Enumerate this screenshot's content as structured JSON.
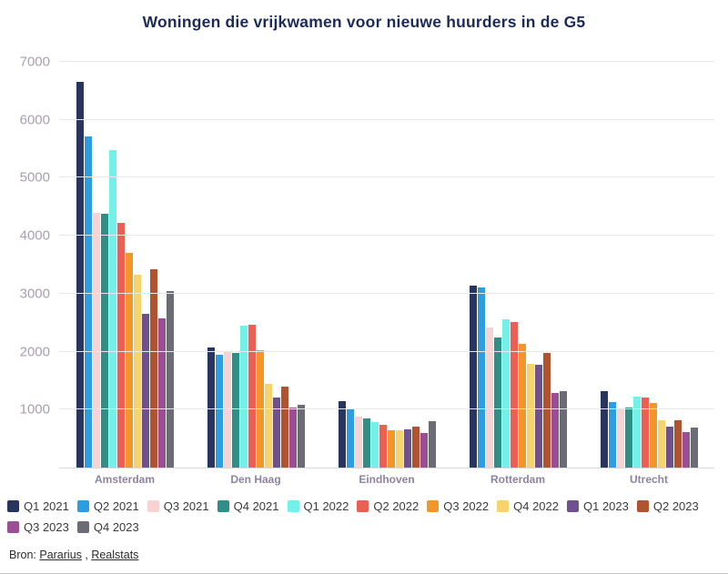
{
  "title": "Woningen die vrijkwamen voor nieuwe huurders in de G5",
  "source": {
    "prefix": "Bron: ",
    "links": [
      "Pararius",
      "Realstats"
    ],
    "separator": " , "
  },
  "chart_data": {
    "type": "bar",
    "title": "Woningen die vrijkwamen voor nieuwe huurders in de G5",
    "xlabel": "",
    "ylabel": "",
    "ylim": [
      0,
      7000
    ],
    "yticks": [
      1000,
      2000,
      3000,
      4000,
      5000,
      6000,
      7000
    ],
    "grid": true,
    "legend_position": "bottom",
    "categories": [
      "Amsterdam",
      "Den Haag",
      "Eindhoven",
      "Rotterdam",
      "Utrecht"
    ],
    "series": [
      {
        "name": "Q1 2021",
        "color": "#27355f",
        "values": [
          6650,
          2070,
          1150,
          3140,
          1320
        ]
      },
      {
        "name": "Q2 2021",
        "color": "#2d9de2",
        "values": [
          5720,
          1950,
          1020,
          3110,
          1130
        ]
      },
      {
        "name": "Q3 2021",
        "color": "#f7d4d3",
        "values": [
          4400,
          2000,
          880,
          2420,
          1020
        ]
      },
      {
        "name": "Q4 2021",
        "color": "#2f8f86",
        "values": [
          4380,
          1980,
          850,
          2250,
          1040
        ]
      },
      {
        "name": "Q1 2022",
        "color": "#72f1e8",
        "values": [
          5480,
          2450,
          790,
          2560,
          1230
        ]
      },
      {
        "name": "Q2 2022",
        "color": "#ec5f55",
        "values": [
          4230,
          2470,
          740,
          2510,
          1210
        ]
      },
      {
        "name": "Q3 2022",
        "color": "#f2962b",
        "values": [
          3700,
          2020,
          640,
          2140,
          1120
        ]
      },
      {
        "name": "Q4 2022",
        "color": "#f6d36c",
        "values": [
          3330,
          1450,
          640,
          1790,
          820
        ]
      },
      {
        "name": "Q1 2023",
        "color": "#6e5290",
        "values": [
          2650,
          1210,
          660,
          1770,
          700
        ]
      },
      {
        "name": "Q2 2023",
        "color": "#b05330",
        "values": [
          3420,
          1400,
          710,
          1980,
          810
        ]
      },
      {
        "name": "Q3 2023",
        "color": "#9b4d96",
        "values": [
          2580,
          1040,
          600,
          1290,
          620
        ]
      },
      {
        "name": "Q4 2023",
        "color": "#6c6c74",
        "values": [
          3050,
          1080,
          800,
          1320,
          690
        ]
      }
    ]
  }
}
